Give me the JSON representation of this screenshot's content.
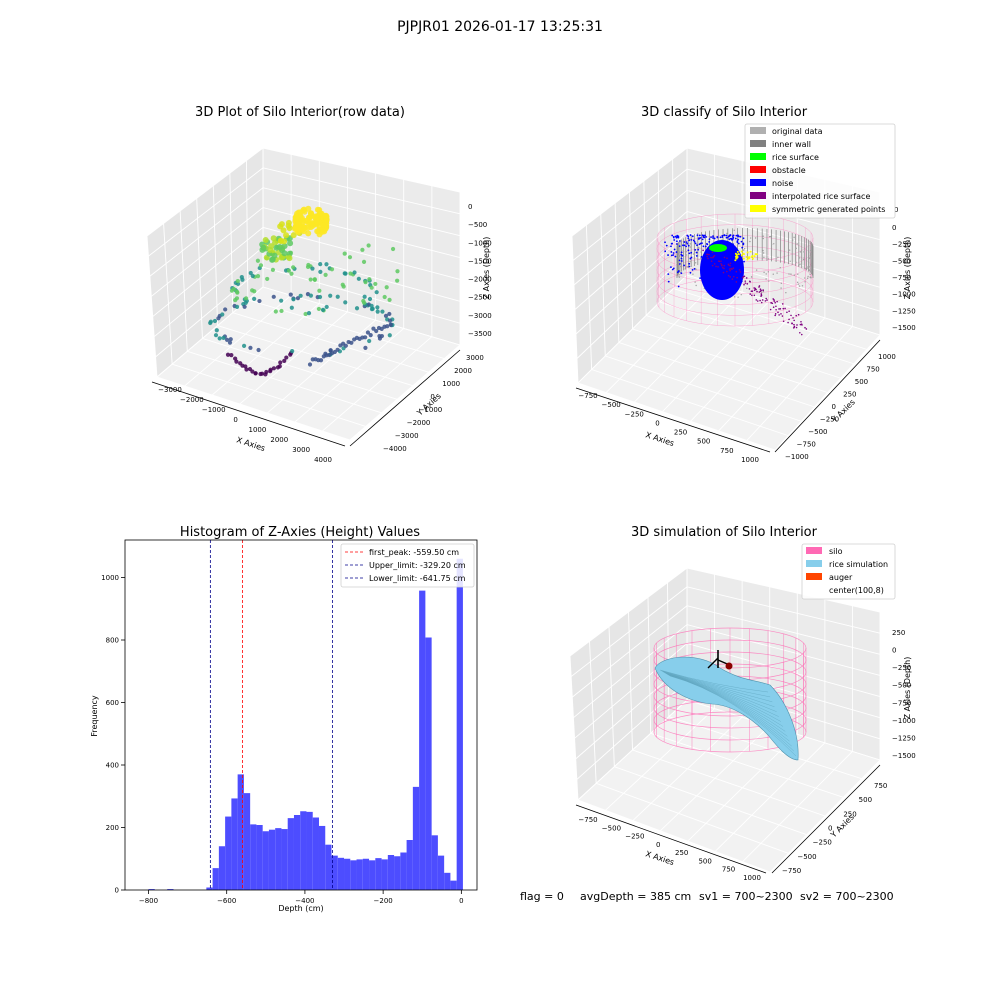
{
  "figure": {
    "suptitle": "PJPJR01 2026-01-17 13:25:31",
    "footer": {
      "flag": "flag = 0",
      "avg_depth": "avgDepth = 385 cm",
      "sv1": "sv1 = 700~2300",
      "sv2": "sv2 = 700~2300"
    }
  },
  "chart_data": [
    {
      "id": "raw3d",
      "type": "scatter",
      "title": "3D Plot of Silo Interior(row data)",
      "xlabel": "X Axies",
      "ylabel": "Y Axies",
      "zlabel": "Z Axies (Depth)",
      "x_ticks": [
        "−3000",
        "−2000",
        "−1000",
        "0",
        "1000",
        "2000",
        "3000",
        "4000"
      ],
      "y_ticks": [
        "−4000",
        "−3000",
        "−2000",
        "−1000",
        "0",
        "1000",
        "2000",
        "3000"
      ],
      "z_ticks": [
        "−3500",
        "−3000",
        "−2500",
        "−2000",
        "−1500",
        "−1000",
        "−500",
        "0"
      ],
      "colormap": [
        "#440154",
        "#3b528b",
        "#21918c",
        "#5ec962",
        "#fde725"
      ]
    },
    {
      "id": "classify3d",
      "type": "scatter",
      "title": "3D classify of Silo Interior",
      "xlabel": "X Axies",
      "ylabel": "Y Axies",
      "zlabel": "Z Axies (Depth)",
      "x_ticks": [
        "−750",
        "−500",
        "−250",
        "0",
        "250",
        "500",
        "750",
        "1000"
      ],
      "y_ticks": [
        "−1000",
        "−750",
        "−500",
        "−250",
        "0",
        "250",
        "500",
        "750",
        "1000"
      ],
      "z_ticks": [
        "−1500",
        "−1250",
        "−1000",
        "−750",
        "−500",
        "−250",
        "0"
      ],
      "z_tick_top": "0",
      "legend": [
        {
          "label": "original data",
          "color": "#b0b0b0"
        },
        {
          "label": "inner wall",
          "color": "#808080"
        },
        {
          "label": "rice surface",
          "color": "#00ff00"
        },
        {
          "label": "obstacle",
          "color": "#ff0000"
        },
        {
          "label": "noise",
          "color": "#0000ff"
        },
        {
          "label": "interpolated rice surface",
          "color": "#800080"
        },
        {
          "label": "symmetric generated points",
          "color": "#ffff00"
        }
      ]
    },
    {
      "id": "hist",
      "type": "bar",
      "title": "Histogram of Z-Axies (Height) Values",
      "xlabel": "Depth (cm)",
      "ylabel": "Frequency",
      "xlim": [
        -860,
        40
      ],
      "ylim": [
        0,
        1120
      ],
      "x_ticks": [
        {
          "v": -800,
          "label": "−800"
        },
        {
          "v": -600,
          "label": "−600"
        },
        {
          "v": -400,
          "label": "−400"
        },
        {
          "v": -200,
          "label": "−200"
        },
        {
          "v": 0,
          "label": "0"
        }
      ],
      "y_ticks": [
        {
          "v": 0,
          "label": "0"
        },
        {
          "v": 200,
          "label": "200"
        },
        {
          "v": 400,
          "label": "400"
        },
        {
          "v": 600,
          "label": "600"
        },
        {
          "v": 800,
          "label": "800"
        },
        {
          "v": 1000,
          "label": "1000"
        }
      ],
      "bar_color": "#4d4dff",
      "bin_start": -652,
      "bin_width": 16,
      "values": [
        8,
        70,
        140,
        235,
        293,
        370,
        310,
        210,
        208,
        188,
        193,
        198,
        195,
        230,
        240,
        252,
        250,
        232,
        205,
        145,
        110,
        103,
        100,
        95,
        98,
        100,
        95,
        102,
        98,
        112,
        108,
        120,
        160,
        330,
        958,
        808,
        175,
        110,
        55,
        30,
        1060
      ],
      "outliers": [
        {
          "x": -800,
          "w": 16,
          "value": 3
        },
        {
          "x": -752,
          "w": 16,
          "value": 3
        }
      ],
      "vlines": [
        {
          "x": -559.5,
          "color": "#ff0000",
          "label": "first_peak: -559.50 cm"
        },
        {
          "x": -329.2,
          "color": "#00008b",
          "label": "Upper_limit: -329.20 cm"
        },
        {
          "x": -641.75,
          "color": "#00008b",
          "label": "Lower_limit: -641.75 cm"
        }
      ]
    },
    {
      "id": "sim3d",
      "type": "area",
      "title": "3D simulation of Silo Interior",
      "xlabel": "X Axies",
      "ylabel": "Y Axies",
      "zlabel": "Z Axies (Depth)",
      "x_ticks": [
        "−750",
        "−500",
        "−250",
        "0",
        "250",
        "500",
        "750",
        "1000"
      ],
      "y_ticks": [
        "−750",
        "−500",
        "−250",
        "0",
        "250",
        "500",
        "750"
      ],
      "z_ticks": [
        "−1500",
        "−1250",
        "−1000",
        "−750",
        "−500",
        "−250",
        "0",
        "250"
      ],
      "legend": [
        {
          "label": "silo",
          "color": "#ff69b4"
        },
        {
          "label": "rice simulation",
          "color": "#87ceeb"
        },
        {
          "label": "auger",
          "color": "#ff4500"
        },
        {
          "label": "center(100,8)",
          "color": "#ffffff"
        }
      ]
    }
  ]
}
